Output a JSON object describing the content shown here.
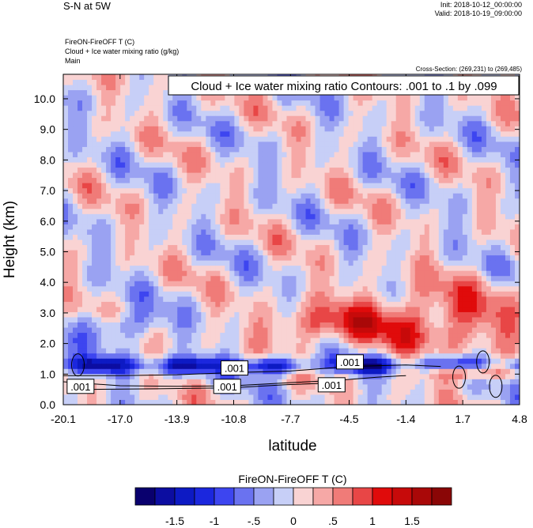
{
  "header": {
    "title": "S-N at 5W",
    "init": "Init: 2018-10-12_00:00:00",
    "valid": "Valid: 2018-10-19_09:00:00",
    "var_line1": "FireON-FireOFF T   (C)",
    "var_line2": "Cloud + Ice water mixing ratio   (g/kg)",
    "var_line3": "Main",
    "cross_section": "Cross-Section: (269,231) to (269,485)"
  },
  "chart_data": {
    "type": "heatmap",
    "title": "Cloud + Ice water mixing ratio Contours: .001 to .1 by .099",
    "xlabel": "latitude",
    "ylabel": "Height (km)",
    "x_ticks": [
      "-20.1",
      "-17.0",
      "-13.9",
      "-10.8",
      "-7.7",
      "-4.5",
      "-1.4",
      "1.7",
      "4.8"
    ],
    "x_tick_values": [
      -20.1,
      -17.0,
      -13.9,
      -10.8,
      -7.7,
      -4.5,
      -1.4,
      1.7,
      4.8
    ],
    "xlim": [
      -20.1,
      4.8
    ],
    "y_ticks": [
      "0.0",
      "1.0",
      "2.0",
      "3.0",
      "4.0",
      "5.0",
      "6.0",
      "7.0",
      "8.0",
      "9.0",
      "10.0"
    ],
    "y_tick_values": [
      0,
      1,
      2,
      3,
      4,
      5,
      6,
      7,
      8,
      9,
      10
    ],
    "ylim": [
      0,
      10.8
    ],
    "contour_labels": [
      {
        "text": ".001",
        "x": -19.2,
        "y": 0.6
      },
      {
        "text": ".001",
        "x": -11.2,
        "y": 0.6
      },
      {
        "text": ".001",
        "x": -10.8,
        "y": 1.2
      },
      {
        "text": ".001",
        "x": -5.5,
        "y": 0.65
      },
      {
        "text": ".001",
        "x": -4.5,
        "y": 1.4
      }
    ],
    "colorbar": {
      "title": "FireON-FireOFF T  (C)",
      "colors": [
        "#09006e",
        "#0c0da1",
        "#0d1ac4",
        "#1b27de",
        "#3d45f0",
        "#6a72f0",
        "#9aa2f2",
        "#c7cff7",
        "#f9d3d3",
        "#f6a8a6",
        "#f07b78",
        "#e84646",
        "#e00b0b",
        "#c70a0a",
        "#a90808",
        "#8a0606"
      ],
      "tick_labels": [
        "-1.5",
        "-1",
        "-.5",
        "0",
        ".5",
        "1",
        "1.5"
      ],
      "tick_values": [
        -1.5,
        -1,
        -0.5,
        0,
        0.5,
        1,
        1.5
      ]
    }
  }
}
